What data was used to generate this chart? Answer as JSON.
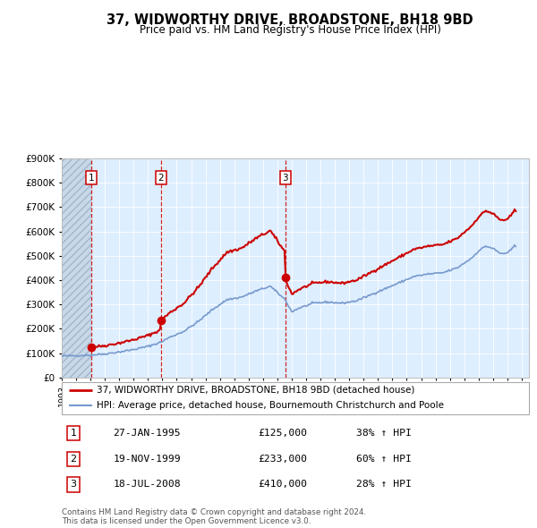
{
  "title": "37, WIDWORTHY DRIVE, BROADSTONE, BH18 9BD",
  "subtitle": "Price paid vs. HM Land Registry's House Price Index (HPI)",
  "footer1": "Contains HM Land Registry data © Crown copyright and database right 2024.",
  "footer2": "This data is licensed under the Open Government Licence v3.0.",
  "legend1": "37, WIDWORTHY DRIVE, BROADSTONE, BH18 9BD (detached house)",
  "legend2": "HPI: Average price, detached house, Bournemouth Christchurch and Poole",
  "sales": [
    {
      "num": 1,
      "date": "27-JAN-1995",
      "price": 125000,
      "pct": "38% ↑ HPI",
      "year": 1995.07
    },
    {
      "num": 2,
      "date": "19-NOV-1999",
      "price": 233000,
      "pct": "60% ↑ HPI",
      "year": 1999.89
    },
    {
      "num": 3,
      "date": "18-JUL-2008",
      "price": 410000,
      "pct": "28% ↑ HPI",
      "year": 2008.54
    }
  ],
  "xlim": [
    1993.0,
    2025.5
  ],
  "ylim": [
    0,
    900000
  ],
  "yticks": [
    0,
    100000,
    200000,
    300000,
    400000,
    500000,
    600000,
    700000,
    800000,
    900000
  ],
  "ytick_labels": [
    "£0",
    "£100K",
    "£200K",
    "£300K",
    "£400K",
    "£500K",
    "£600K",
    "£700K",
    "£800K",
    "£900K"
  ],
  "xticks": [
    1993,
    1994,
    1995,
    1996,
    1997,
    1998,
    1999,
    2000,
    2001,
    2002,
    2003,
    2004,
    2005,
    2006,
    2007,
    2008,
    2009,
    2010,
    2011,
    2012,
    2013,
    2014,
    2015,
    2016,
    2017,
    2018,
    2019,
    2020,
    2021,
    2022,
    2023,
    2024,
    2025
  ],
  "hpi_color": "#7799cc",
  "price_color": "#cc0000",
  "bg_color": "#ddeeff",
  "hatch_color": "#b0c4de"
}
